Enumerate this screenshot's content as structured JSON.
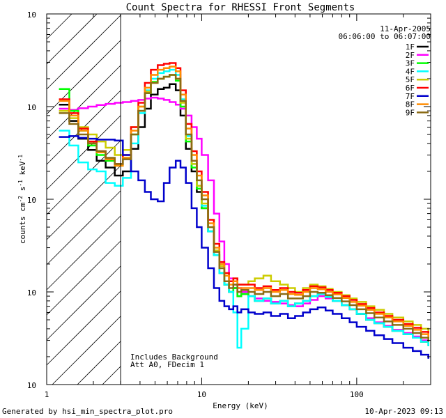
{
  "chart_data": {
    "type": "line",
    "title": "Count Spectra for RHESSI Front Segments",
    "xlabel": "Energy (keV)",
    "ylabel": "counts cm^-2 s^-1 keV^-1",
    "ylabel_parts": {
      "a": "counts cm",
      "b": "-2",
      "c": " s",
      "d": "-1",
      "e": " keV",
      "f": "-1"
    },
    "x_scale": "log",
    "y_scale": "log",
    "xlim": [
      1,
      300
    ],
    "ylim": [
      0.001,
      10
    ],
    "x_ticks": [
      {
        "value": 1,
        "label": "1"
      },
      {
        "value": 10,
        "label": "10"
      },
      {
        "value": 100,
        "label": "100"
      }
    ],
    "y_ticks": [
      {
        "value": 0.001,
        "base": "10",
        "exp": "-3"
      },
      {
        "value": 0.01,
        "base": "10",
        "exp": "-2"
      },
      {
        "value": 0.1,
        "base": "10",
        "exp": "-1"
      },
      {
        "value": 1,
        "base": "10",
        "exp": "0"
      },
      {
        "value": 10,
        "base": "10",
        "exp": "1"
      }
    ],
    "excluded_region": {
      "from": 1,
      "to": 3,
      "style": "hatched"
    },
    "annotations": {
      "date": "11-Apr-2005",
      "time_range": "06:06:00 to 06:07:00",
      "note_line1": "Includes Background",
      "note_line2": "Att A0, FDecim 1"
    },
    "series": [
      {
        "name": "1F",
        "color": "#000000",
        "x": [
          1.2,
          1.4,
          1.6,
          1.85,
          2.1,
          2.4,
          2.75,
          3.1,
          3.5,
          3.9,
          4.3,
          4.7,
          5.2,
          5.7,
          6.2,
          6.8,
          7.3,
          7.9,
          8.6,
          9.3,
          10,
          11,
          12,
          13,
          14,
          15,
          16,
          17,
          18,
          20,
          22,
          25,
          28,
          32,
          36,
          40,
          45,
          50,
          56,
          63,
          70,
          80,
          90,
          100,
          115,
          130,
          150,
          170,
          200,
          230,
          260,
          290
        ],
        "y": [
          1.05,
          0.7,
          0.45,
          0.34,
          0.26,
          0.22,
          0.18,
          0.2,
          0.35,
          0.6,
          0.95,
          1.35,
          1.55,
          1.6,
          1.75,
          1.5,
          0.8,
          0.35,
          0.2,
          0.12,
          0.08,
          0.045,
          0.025,
          0.016,
          0.012,
          0.01,
          0.011,
          0.009,
          0.0095,
          0.009,
          0.008,
          0.0085,
          0.0075,
          0.008,
          0.007,
          0.0075,
          0.008,
          0.009,
          0.0095,
          0.0088,
          0.008,
          0.0072,
          0.0065,
          0.0058,
          0.005,
          0.0046,
          0.0042,
          0.0038,
          0.0035,
          0.0032,
          0.0029,
          0.0026
        ]
      },
      {
        "name": "2F",
        "color": "#ff00ff",
        "x": [
          1.2,
          1.4,
          1.6,
          1.85,
          2.1,
          2.4,
          2.75,
          3.1,
          3.5,
          3.9,
          4.3,
          4.7,
          5.2,
          5.7,
          6.2,
          6.8,
          7.3,
          7.9,
          8.6,
          9.3,
          10,
          11,
          12,
          13,
          14,
          15,
          16,
          17,
          18,
          20,
          22,
          25,
          28,
          32,
          36,
          40,
          45,
          50,
          56,
          63,
          70,
          80,
          90,
          100,
          115,
          130,
          150,
          170,
          200,
          230,
          260,
          290
        ],
        "y": [
          0.95,
          0.92,
          0.96,
          1.0,
          1.04,
          1.07,
          1.1,
          1.12,
          1.15,
          1.18,
          1.22,
          1.25,
          1.22,
          1.18,
          1.12,
          1.05,
          0.95,
          0.8,
          0.6,
          0.45,
          0.3,
          0.16,
          0.07,
          0.035,
          0.02,
          0.014,
          0.012,
          0.011,
          0.01,
          0.009,
          0.0085,
          0.008,
          0.0078,
          0.0075,
          0.0072,
          0.007,
          0.0075,
          0.0082,
          0.009,
          0.0085,
          0.008,
          0.0072,
          0.0065,
          0.0058,
          0.0052,
          0.0047,
          0.0043,
          0.0039,
          0.0036,
          0.0033,
          0.003,
          0.0027
        ]
      },
      {
        "name": "3F",
        "color": "#00ff00",
        "x": [
          1.2,
          1.4,
          1.6,
          1.85,
          2.1,
          2.4,
          2.75,
          3.1,
          3.5,
          3.9,
          4.3,
          4.7,
          5.2,
          5.7,
          6.2,
          6.8,
          7.3,
          7.9,
          8.6,
          9.3,
          10,
          11,
          12,
          13,
          14,
          15,
          16,
          17,
          18,
          20,
          22,
          25,
          28,
          32,
          36,
          40,
          45,
          50,
          56,
          63,
          70,
          80,
          90,
          100,
          115,
          130,
          150,
          170,
          200,
          230,
          260,
          290
        ],
        "y": [
          1.55,
          0.9,
          0.55,
          0.38,
          0.3,
          0.26,
          0.23,
          0.28,
          0.5,
          0.9,
          1.4,
          1.85,
          2.0,
          2.1,
          2.2,
          1.9,
          1.0,
          0.42,
          0.22,
          0.13,
          0.08,
          0.045,
          0.025,
          0.016,
          0.012,
          0.01,
          0.011,
          0.009,
          0.0095,
          0.009,
          0.008,
          0.0085,
          0.0075,
          0.008,
          0.007,
          0.0075,
          0.008,
          0.009,
          0.0095,
          0.0088,
          0.008,
          0.0072,
          0.0065,
          0.0058,
          0.005,
          0.0046,
          0.0042,
          0.0038,
          0.0035,
          0.0032,
          0.0029,
          0.0026
        ]
      },
      {
        "name": "4F",
        "color": "#00ffff",
        "x": [
          1.2,
          1.4,
          1.6,
          1.85,
          2.1,
          2.4,
          2.75,
          3.1,
          3.5,
          3.9,
          4.3,
          4.7,
          5.2,
          5.7,
          6.2,
          6.8,
          7.3,
          7.9,
          8.6,
          9.3,
          10,
          11,
          12,
          13,
          14,
          15,
          16,
          17,
          18,
          20,
          22,
          25,
          28,
          32,
          36,
          40,
          45,
          50,
          56,
          63,
          70,
          80,
          90,
          100,
          115,
          130,
          150,
          170,
          200,
          230,
          260,
          290
        ],
        "y": [
          0.55,
          0.38,
          0.25,
          0.21,
          0.2,
          0.15,
          0.14,
          0.17,
          0.4,
          0.85,
          1.5,
          2.0,
          2.3,
          2.4,
          2.5,
          2.2,
          1.2,
          0.48,
          0.24,
          0.14,
          0.085,
          0.045,
          0.025,
          0.016,
          0.012,
          0.01,
          0.006,
          0.0025,
          0.004,
          0.009,
          0.008,
          0.0085,
          0.0075,
          0.008,
          0.007,
          0.0075,
          0.008,
          0.009,
          0.0095,
          0.0088,
          0.008,
          0.0072,
          0.0065,
          0.0058,
          0.005,
          0.0046,
          0.0042,
          0.0038,
          0.0035,
          0.0032,
          0.0029,
          0.0026
        ]
      },
      {
        "name": "5F",
        "color": "#cccc00",
        "x": [
          1.2,
          1.4,
          1.6,
          1.85,
          2.1,
          2.4,
          2.75,
          3.1,
          3.5,
          3.9,
          4.3,
          4.7,
          5.2,
          5.7,
          6.2,
          6.8,
          7.3,
          7.9,
          8.6,
          9.3,
          10,
          11,
          12,
          13,
          14,
          15,
          16,
          17,
          18,
          20,
          22,
          25,
          28,
          32,
          36,
          40,
          45,
          50,
          56,
          63,
          70,
          80,
          90,
          100,
          115,
          130,
          150,
          170,
          200,
          230,
          260,
          290
        ],
        "y": [
          0.9,
          0.75,
          0.6,
          0.5,
          0.42,
          0.36,
          0.3,
          0.34,
          0.6,
          1.0,
          1.45,
          1.8,
          2.0,
          2.1,
          2.2,
          2.0,
          1.1,
          0.45,
          0.24,
          0.14,
          0.09,
          0.05,
          0.028,
          0.019,
          0.015,
          0.013,
          0.014,
          0.012,
          0.012,
          0.013,
          0.014,
          0.015,
          0.013,
          0.012,
          0.011,
          0.01,
          0.011,
          0.012,
          0.0115,
          0.0108,
          0.01,
          0.0092,
          0.0085,
          0.0078,
          0.007,
          0.0064,
          0.0058,
          0.0053,
          0.0048,
          0.0044,
          0.004,
          0.0036
        ]
      },
      {
        "name": "6F",
        "color": "#ff0000",
        "x": [
          1.2,
          1.4,
          1.6,
          1.85,
          2.1,
          2.4,
          2.75,
          3.1,
          3.5,
          3.9,
          4.3,
          4.7,
          5.2,
          5.7,
          6.2,
          6.8,
          7.3,
          7.9,
          8.6,
          9.3,
          10,
          11,
          12,
          13,
          14,
          15,
          16,
          17,
          18,
          20,
          22,
          25,
          28,
          32,
          36,
          40,
          45,
          50,
          56,
          63,
          70,
          80,
          90,
          100,
          115,
          130,
          150,
          170,
          200,
          230,
          260,
          290
        ],
        "y": [
          1.2,
          0.85,
          0.58,
          0.42,
          0.33,
          0.27,
          0.24,
          0.3,
          0.6,
          1.1,
          1.8,
          2.5,
          2.8,
          2.9,
          2.95,
          2.6,
          1.5,
          0.65,
          0.33,
          0.2,
          0.12,
          0.06,
          0.033,
          0.021,
          0.016,
          0.013,
          0.014,
          0.012,
          0.012,
          0.012,
          0.011,
          0.0115,
          0.0105,
          0.011,
          0.01,
          0.0098,
          0.0105,
          0.0115,
          0.0112,
          0.0105,
          0.0098,
          0.009,
          0.0082,
          0.0074,
          0.0067,
          0.006,
          0.0055,
          0.005,
          0.0045,
          0.0041,
          0.0037,
          0.0033
        ]
      },
      {
        "name": "7F",
        "color": "#0000cc",
        "x": [
          1.2,
          1.4,
          1.6,
          1.85,
          2.1,
          2.4,
          2.75,
          3.1,
          3.5,
          3.9,
          4.3,
          4.7,
          5.2,
          5.7,
          6.2,
          6.8,
          7.3,
          7.9,
          8.6,
          9.3,
          10,
          11,
          12,
          13,
          14,
          15,
          16,
          17,
          18,
          20,
          22,
          25,
          28,
          32,
          36,
          40,
          45,
          50,
          56,
          63,
          70,
          80,
          90,
          100,
          115,
          130,
          150,
          170,
          200,
          230,
          260,
          290
        ],
        "y": [
          0.47,
          0.48,
          0.46,
          0.45,
          0.44,
          0.44,
          0.43,
          0.3,
          0.2,
          0.16,
          0.12,
          0.1,
          0.095,
          0.15,
          0.22,
          0.26,
          0.22,
          0.15,
          0.08,
          0.05,
          0.03,
          0.018,
          0.011,
          0.008,
          0.007,
          0.0065,
          0.007,
          0.006,
          0.0065,
          0.006,
          0.0058,
          0.006,
          0.0055,
          0.0058,
          0.0052,
          0.0055,
          0.006,
          0.0065,
          0.0068,
          0.0063,
          0.0058,
          0.0052,
          0.0047,
          0.0042,
          0.0038,
          0.0034,
          0.0031,
          0.0028,
          0.0025,
          0.0023,
          0.0021,
          0.0019
        ]
      },
      {
        "name": "8F",
        "color": "#ff8c00",
        "x": [
          1.2,
          1.4,
          1.6,
          1.85,
          2.1,
          2.4,
          2.75,
          3.1,
          3.5,
          3.9,
          4.3,
          4.7,
          5.2,
          5.7,
          6.2,
          6.8,
          7.3,
          7.9,
          8.6,
          9.3,
          10,
          11,
          12,
          13,
          14,
          15,
          16,
          17,
          18,
          20,
          22,
          25,
          28,
          32,
          36,
          40,
          45,
          50,
          56,
          63,
          70,
          80,
          90,
          100,
          115,
          130,
          150,
          170,
          200,
          230,
          260,
          290
        ],
        "y": [
          1.15,
          0.8,
          0.55,
          0.4,
          0.32,
          0.27,
          0.23,
          0.28,
          0.55,
          1.0,
          1.6,
          2.2,
          2.5,
          2.6,
          2.7,
          2.4,
          1.35,
          0.58,
          0.3,
          0.18,
          0.11,
          0.055,
          0.03,
          0.02,
          0.015,
          0.012,
          0.013,
          0.011,
          0.011,
          0.011,
          0.0105,
          0.011,
          0.01,
          0.0105,
          0.0095,
          0.0093,
          0.01,
          0.011,
          0.0107,
          0.01,
          0.0094,
          0.0086,
          0.0078,
          0.0071,
          0.0064,
          0.0058,
          0.0053,
          0.0048,
          0.0043,
          0.0039,
          0.0035,
          0.0032
        ]
      },
      {
        "name": "9F",
        "color": "#8b6b14",
        "x": [
          1.2,
          1.4,
          1.6,
          1.85,
          2.1,
          2.4,
          2.75,
          3.1,
          3.5,
          3.9,
          4.3,
          4.7,
          5.2,
          5.7,
          6.2,
          6.8,
          7.3,
          7.9,
          8.6,
          9.3,
          10,
          11,
          12,
          13,
          14,
          15,
          16,
          17,
          18,
          20,
          22,
          25,
          28,
          32,
          36,
          40,
          45,
          50,
          56,
          63,
          70,
          80,
          90,
          100,
          115,
          130,
          150,
          170,
          200,
          230,
          260,
          290
        ],
        "y": [
          0.85,
          0.65,
          0.5,
          0.4,
          0.33,
          0.28,
          0.24,
          0.27,
          0.5,
          0.9,
          1.4,
          1.8,
          2.0,
          2.1,
          2.2,
          2.0,
          1.15,
          0.5,
          0.26,
          0.16,
          0.1,
          0.05,
          0.027,
          0.018,
          0.013,
          0.011,
          0.012,
          0.01,
          0.0105,
          0.01,
          0.0095,
          0.01,
          0.009,
          0.0095,
          0.0085,
          0.0085,
          0.009,
          0.01,
          0.0098,
          0.0092,
          0.0086,
          0.0079,
          0.0072,
          0.0065,
          0.0059,
          0.0053,
          0.0048,
          0.0044,
          0.004,
          0.0036,
          0.0032,
          0.0029
        ]
      }
    ]
  },
  "footer": {
    "generated_by": "Generated by hsi_min_spectra_plot.pro",
    "timestamp": "10-Apr-2023 09:13"
  }
}
